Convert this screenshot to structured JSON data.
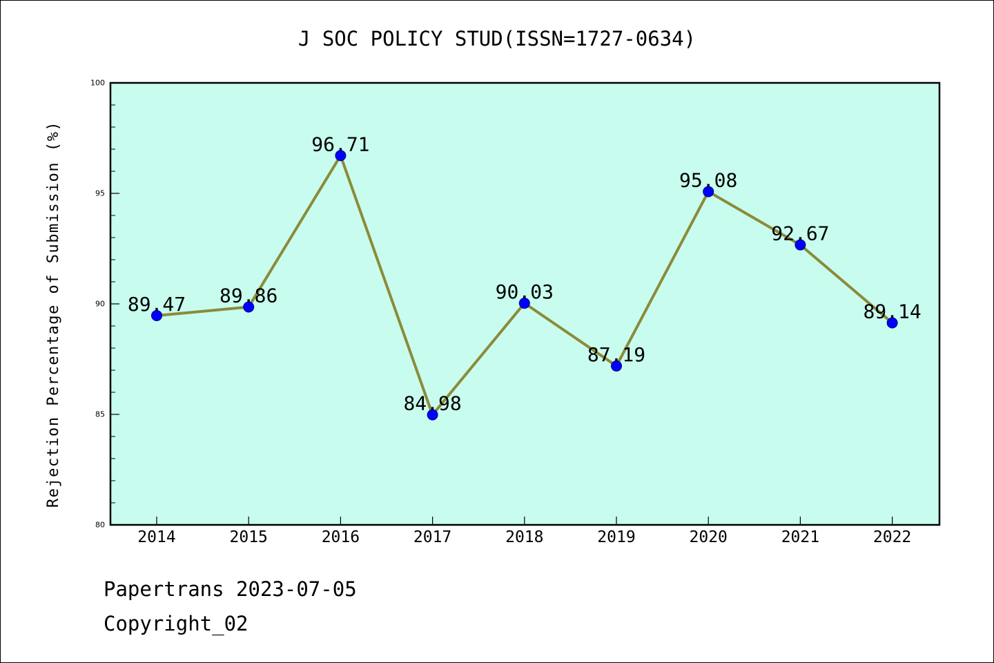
{
  "chart_data": {
    "type": "line",
    "title": "J SOC POLICY STUD(ISSN=1727-0634)",
    "xlabel": "",
    "ylabel": "Rejection Percentage of Submission (%)",
    "categories": [
      "2014",
      "2015",
      "2016",
      "2017",
      "2018",
      "2019",
      "2020",
      "2021",
      "2022"
    ],
    "series": [
      {
        "values": [
          89.47,
          89.86,
          96.71,
          84.98,
          90.03,
          87.19,
          95.08,
          92.67,
          89.14
        ]
      }
    ],
    "data_labels": [
      "89.47",
      "89.86",
      "96.71",
      "84.98",
      "90.03",
      "87.19",
      "95.08",
      "92.67",
      "89.14"
    ],
    "ylim": [
      80,
      100
    ],
    "yticks": [
      80,
      85,
      90,
      95,
      100
    ],
    "grid": false,
    "colors": {
      "plot_background": "#c8fcee",
      "line": "#8b8b3a",
      "marker": "#0000ff"
    }
  },
  "footer": {
    "line1": "Papertrans 2023-07-05",
    "line2": "Copyright_02"
  }
}
